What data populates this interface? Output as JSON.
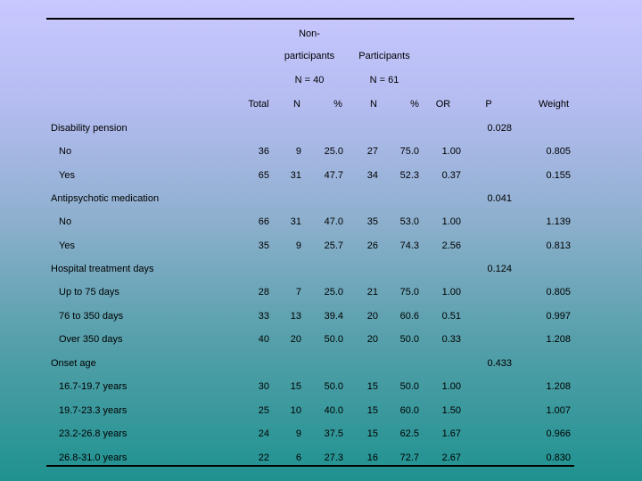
{
  "header": {
    "non_line1": "Non-",
    "non_line2": "participants",
    "participants": "Participants",
    "non_n": "N = 40",
    "part_n": "N = 61",
    "columns": [
      "Total",
      "N",
      "%",
      "N",
      "%",
      "OR",
      "P",
      "Weight"
    ]
  },
  "groups": [
    {
      "label": "Disability pension",
      "p": "0.028",
      "rows": [
        {
          "label": "No",
          "cells": [
            "36",
            "9",
            "25.0",
            "27",
            "75.0",
            "1.00",
            "0.805"
          ]
        },
        {
          "label": "Yes",
          "cells": [
            "65",
            "31",
            "47.7",
            "34",
            "52.3",
            "0.37",
            "0.155"
          ]
        }
      ]
    },
    {
      "label": "Antipsychotic medication",
      "p": "0.041",
      "rows": [
        {
          "label": "No",
          "cells": [
            "66",
            "31",
            "47.0",
            "35",
            "53.0",
            "1.00",
            "1.139"
          ]
        },
        {
          "label": "Yes",
          "cells": [
            "35",
            "9",
            "25.7",
            "26",
            "74.3",
            "2.56",
            "0.813"
          ]
        }
      ]
    },
    {
      "label": "Hospital treatment days",
      "p": "0.124",
      "rows": [
        {
          "label": "Up to 75 days",
          "cells": [
            "28",
            "7",
            "25.0",
            "21",
            "75.0",
            "1.00",
            "0.805"
          ]
        },
        {
          "label": "76 to 350 days",
          "cells": [
            "33",
            "13",
            "39.4",
            "20",
            "60.6",
            "0.51",
            "0.997"
          ]
        },
        {
          "label": "Over 350 days",
          "cells": [
            "40",
            "20",
            "50.0",
            "20",
            "50.0",
            "0.33",
            "1.208"
          ]
        }
      ]
    },
    {
      "label": "Onset age",
      "p": "0.433",
      "rows": [
        {
          "label": "16.7-19.7 years",
          "cells": [
            "30",
            "15",
            "50.0",
            "15",
            "50.0",
            "1.00",
            "1.208"
          ]
        },
        {
          "label": "19.7-23.3 years",
          "cells": [
            "25",
            "10",
            "40.0",
            "15",
            "60.0",
            "1.50",
            "1.007"
          ]
        },
        {
          "label": "23.2-26.8 years",
          "cells": [
            "24",
            "9",
            "37.5",
            "15",
            "62.5",
            "1.67",
            "0.966"
          ]
        },
        {
          "label": "26.8-31.0 years",
          "cells": [
            "22",
            "6",
            "27.3",
            "16",
            "72.7",
            "2.67",
            "0.830"
          ]
        }
      ]
    }
  ]
}
